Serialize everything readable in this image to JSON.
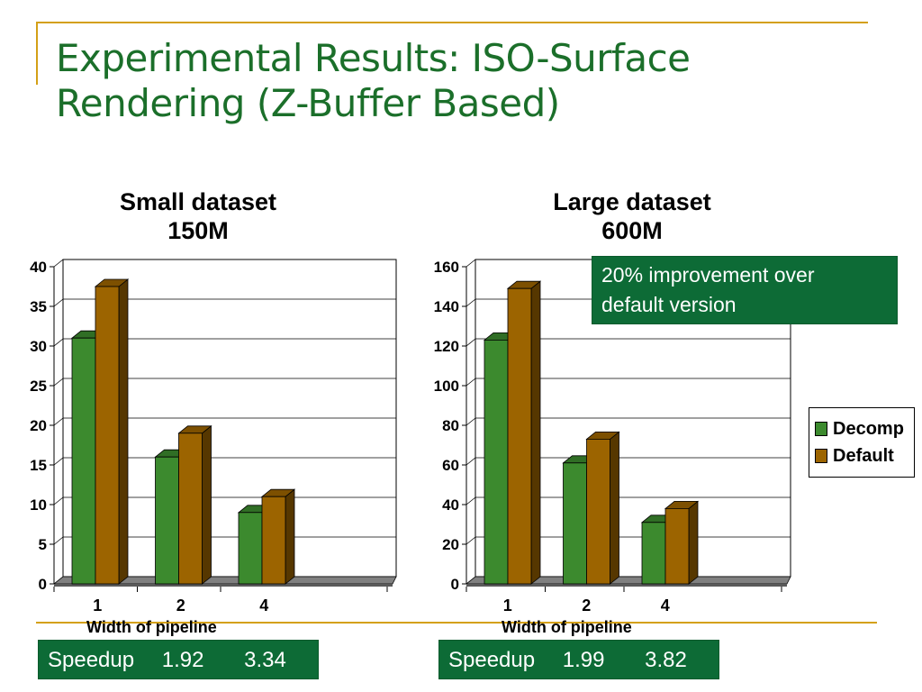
{
  "slide": {
    "title_line1": "Experimental Results: ISO-Surface",
    "title_line2": "Rendering (Z-Buffer Based)"
  },
  "colors": {
    "title": "#1b6f2a",
    "decomp": "#3c8a2e",
    "default": "#9c6400",
    "callout_bg": "#0d6b36",
    "accent_line": "#d4a017"
  },
  "callout": {
    "line1": "20% improvement over",
    "line2": "default version"
  },
  "legend": {
    "decomp": "Decomp",
    "default": "Default"
  },
  "speedup_left": {
    "label": "Speedup",
    "v1": "1.92",
    "v2": "3.34"
  },
  "speedup_right": {
    "label": "Speedup",
    "v1": "1.99",
    "v2": "3.82"
  },
  "chart_data": [
    {
      "type": "bar",
      "title_line1": "Small dataset",
      "title_line2": "150M",
      "xlabel": "Width of pipeline",
      "ylabel": "",
      "categories": [
        "1",
        "2",
        "4"
      ],
      "series": [
        {
          "name": "Decomp",
          "values": [
            31,
            16,
            9
          ]
        },
        {
          "name": "Default",
          "values": [
            37.5,
            19,
            11
          ]
        }
      ],
      "ylim": [
        0,
        40
      ],
      "yticks": [
        0,
        5,
        10,
        15,
        20,
        25,
        30,
        35,
        40
      ],
      "grid": true,
      "style": "3d-clustered"
    },
    {
      "type": "bar",
      "title_line1": "Large dataset",
      "title_line2": "600M",
      "xlabel": "Width of pipeline",
      "ylabel": "",
      "categories": [
        "1",
        "2",
        "4"
      ],
      "series": [
        {
          "name": "Decomp",
          "values": [
            123,
            61,
            31
          ]
        },
        {
          "name": "Default",
          "values": [
            149,
            73,
            38
          ]
        }
      ],
      "ylim": [
        0,
        160
      ],
      "yticks": [
        0,
        20,
        40,
        60,
        80,
        100,
        120,
        140,
        160
      ],
      "grid": true,
      "legend": "right",
      "style": "3d-clustered"
    }
  ]
}
